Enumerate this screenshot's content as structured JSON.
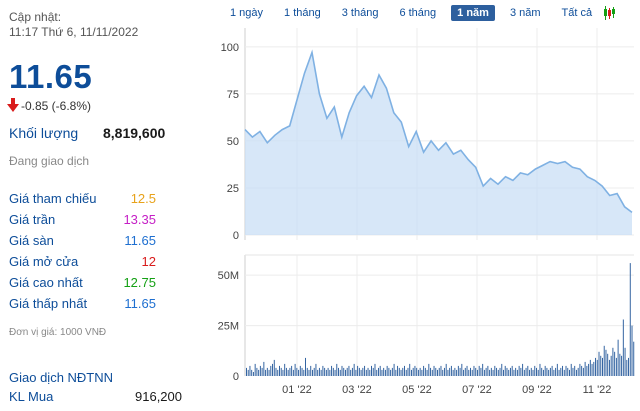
{
  "header": {
    "updated_label": "Cập nhật:",
    "updated_value": "11:17 Thứ 6, 11/11/2022"
  },
  "quote": {
    "price": "11.65",
    "change": "-0.85 (-6.8%)",
    "volume_label": "Khối lượng",
    "volume_value": "8,819,600",
    "status": "Đang giao dịch"
  },
  "stats": [
    {
      "label": "Giá tham chiếu",
      "value": "12.5",
      "color": "#e8a21a"
    },
    {
      "label": "Giá trần",
      "value": "13.35",
      "color": "#c51fc5"
    },
    {
      "label": "Giá sàn",
      "value": "11.65",
      "color": "#1e6fd0"
    },
    {
      "label": "Giá mở cửa",
      "value": "12",
      "color": "#d91c1c"
    },
    {
      "label": "Giá cao nhất",
      "value": "12.75",
      "color": "#14a014"
    },
    {
      "label": "Giá thấp nhất",
      "value": "11.65",
      "color": "#1e6fd0"
    }
  ],
  "unit_note": "Đơn vị giá: 1000 VNĐ",
  "foreign": {
    "title": "Giao dịch NĐTNN",
    "buy_label": "KL Mua",
    "buy_value": "916,200"
  },
  "toolbar": {
    "ranges": [
      "1 ngày",
      "1 tháng",
      "3 tháng",
      "6 tháng",
      "1 năm",
      "3 năm",
      "Tất cả"
    ],
    "active_range": "1 năm",
    "candle_icon": "candlestick-icon"
  },
  "colors": {
    "accent": "#0d4d99",
    "area_fill": "#c9dff5",
    "area_line": "#7fb1e3",
    "down": "#d91c1c",
    "volume_bar": "#2d5f9e"
  },
  "chart_data": [
    {
      "type": "area",
      "x": [
        "2021-11-12",
        "2021-11-19",
        "2021-11-26",
        "2021-12-03",
        "2021-12-10",
        "2021-12-17",
        "2021-12-24",
        "2021-12-31",
        "2022-01-07",
        "2022-01-14",
        "2022-01-21",
        "2022-01-28",
        "2022-02-04",
        "2022-02-11",
        "2022-02-18",
        "2022-02-25",
        "2022-03-04",
        "2022-03-11",
        "2022-03-18",
        "2022-03-25",
        "2022-04-01",
        "2022-04-08",
        "2022-04-15",
        "2022-04-22",
        "2022-04-29",
        "2022-05-06",
        "2022-05-13",
        "2022-05-20",
        "2022-05-27",
        "2022-06-03",
        "2022-06-10",
        "2022-06-17",
        "2022-06-24",
        "2022-07-01",
        "2022-07-08",
        "2022-07-15",
        "2022-07-22",
        "2022-07-29",
        "2022-08-05",
        "2022-08-12",
        "2022-08-19",
        "2022-08-26",
        "2022-09-02",
        "2022-09-09",
        "2022-09-16",
        "2022-09-23",
        "2022-09-30",
        "2022-10-07",
        "2022-10-14",
        "2022-10-21",
        "2022-10-28",
        "2022-11-04",
        "2022-11-11"
      ],
      "y": [
        56,
        52,
        55,
        49,
        53,
        56,
        58,
        72,
        86,
        97,
        75,
        62,
        68,
        52,
        65,
        74,
        79,
        73,
        85,
        78,
        65,
        60,
        47,
        55,
        44,
        50,
        45,
        49,
        43,
        45,
        40,
        36,
        26,
        30,
        27,
        31,
        29,
        33,
        32,
        35,
        37,
        39,
        38,
        39,
        36,
        35,
        31,
        29,
        26,
        21,
        22,
        15,
        12
      ],
      "ylim": [
        0,
        110
      ],
      "yticks": [
        0,
        25,
        50,
        75,
        100
      ],
      "xtick_labels": [
        "01 '22",
        "03 '22",
        "05 '22",
        "07 '22",
        "09 '22",
        "11 '22"
      ],
      "grid": true
    },
    {
      "type": "bar",
      "series": [
        {
          "values": [
            4,
            3,
            5,
            3,
            2,
            6,
            4,
            3,
            5,
            4,
            7,
            3,
            4,
            3,
            5,
            6,
            8,
            4,
            3,
            5,
            4,
            3,
            6,
            4,
            3,
            4,
            5,
            3,
            6,
            4,
            3,
            5,
            4,
            3,
            9,
            4,
            3,
            5,
            3,
            4,
            6,
            3,
            4,
            3,
            5,
            4,
            3,
            4,
            3,
            5,
            4,
            3,
            6,
            4,
            3,
            5,
            4,
            3,
            4,
            5,
            3,
            4,
            6,
            3,
            5,
            4,
            3,
            4,
            5,
            3,
            4,
            3,
            5,
            4,
            6,
            3,
            4,
            5,
            3,
            4,
            3,
            5,
            4,
            3,
            4,
            6,
            3,
            5,
            4,
            3,
            4,
            5,
            3,
            4,
            6,
            3,
            4,
            5,
            4,
            3,
            4,
            3,
            5,
            4,
            3,
            6,
            4,
            3,
            5,
            4,
            3,
            4,
            5,
            3,
            4,
            6,
            3,
            4,
            5,
            3,
            4,
            3,
            5,
            4,
            6,
            3,
            4,
            5,
            3,
            4,
            3,
            5,
            4,
            3,
            5,
            4,
            6,
            3,
            4,
            5,
            3,
            4,
            3,
            5,
            4,
            3,
            4,
            6,
            3,
            5,
            4,
            3,
            4,
            5,
            3,
            4,
            3,
            5,
            4,
            6,
            3,
            4,
            5,
            3,
            4,
            3,
            5,
            4,
            3,
            6,
            4,
            3,
            5,
            4,
            3,
            4,
            5,
            3,
            4,
            6,
            3,
            4,
            5,
            3,
            5,
            4,
            3,
            6,
            4,
            5,
            3,
            4,
            6,
            5,
            4,
            7,
            5,
            6,
            8,
            6,
            7,
            9,
            8,
            12,
            10,
            9,
            15,
            13,
            11,
            8,
            10,
            14,
            12,
            9,
            18,
            11,
            10,
            28,
            14,
            8,
            9,
            56,
            25,
            17
          ]
        }
      ],
      "ylim": [
        0,
        60
      ],
      "yticks_labels": [
        "0",
        "25M",
        "50M"
      ]
    }
  ]
}
